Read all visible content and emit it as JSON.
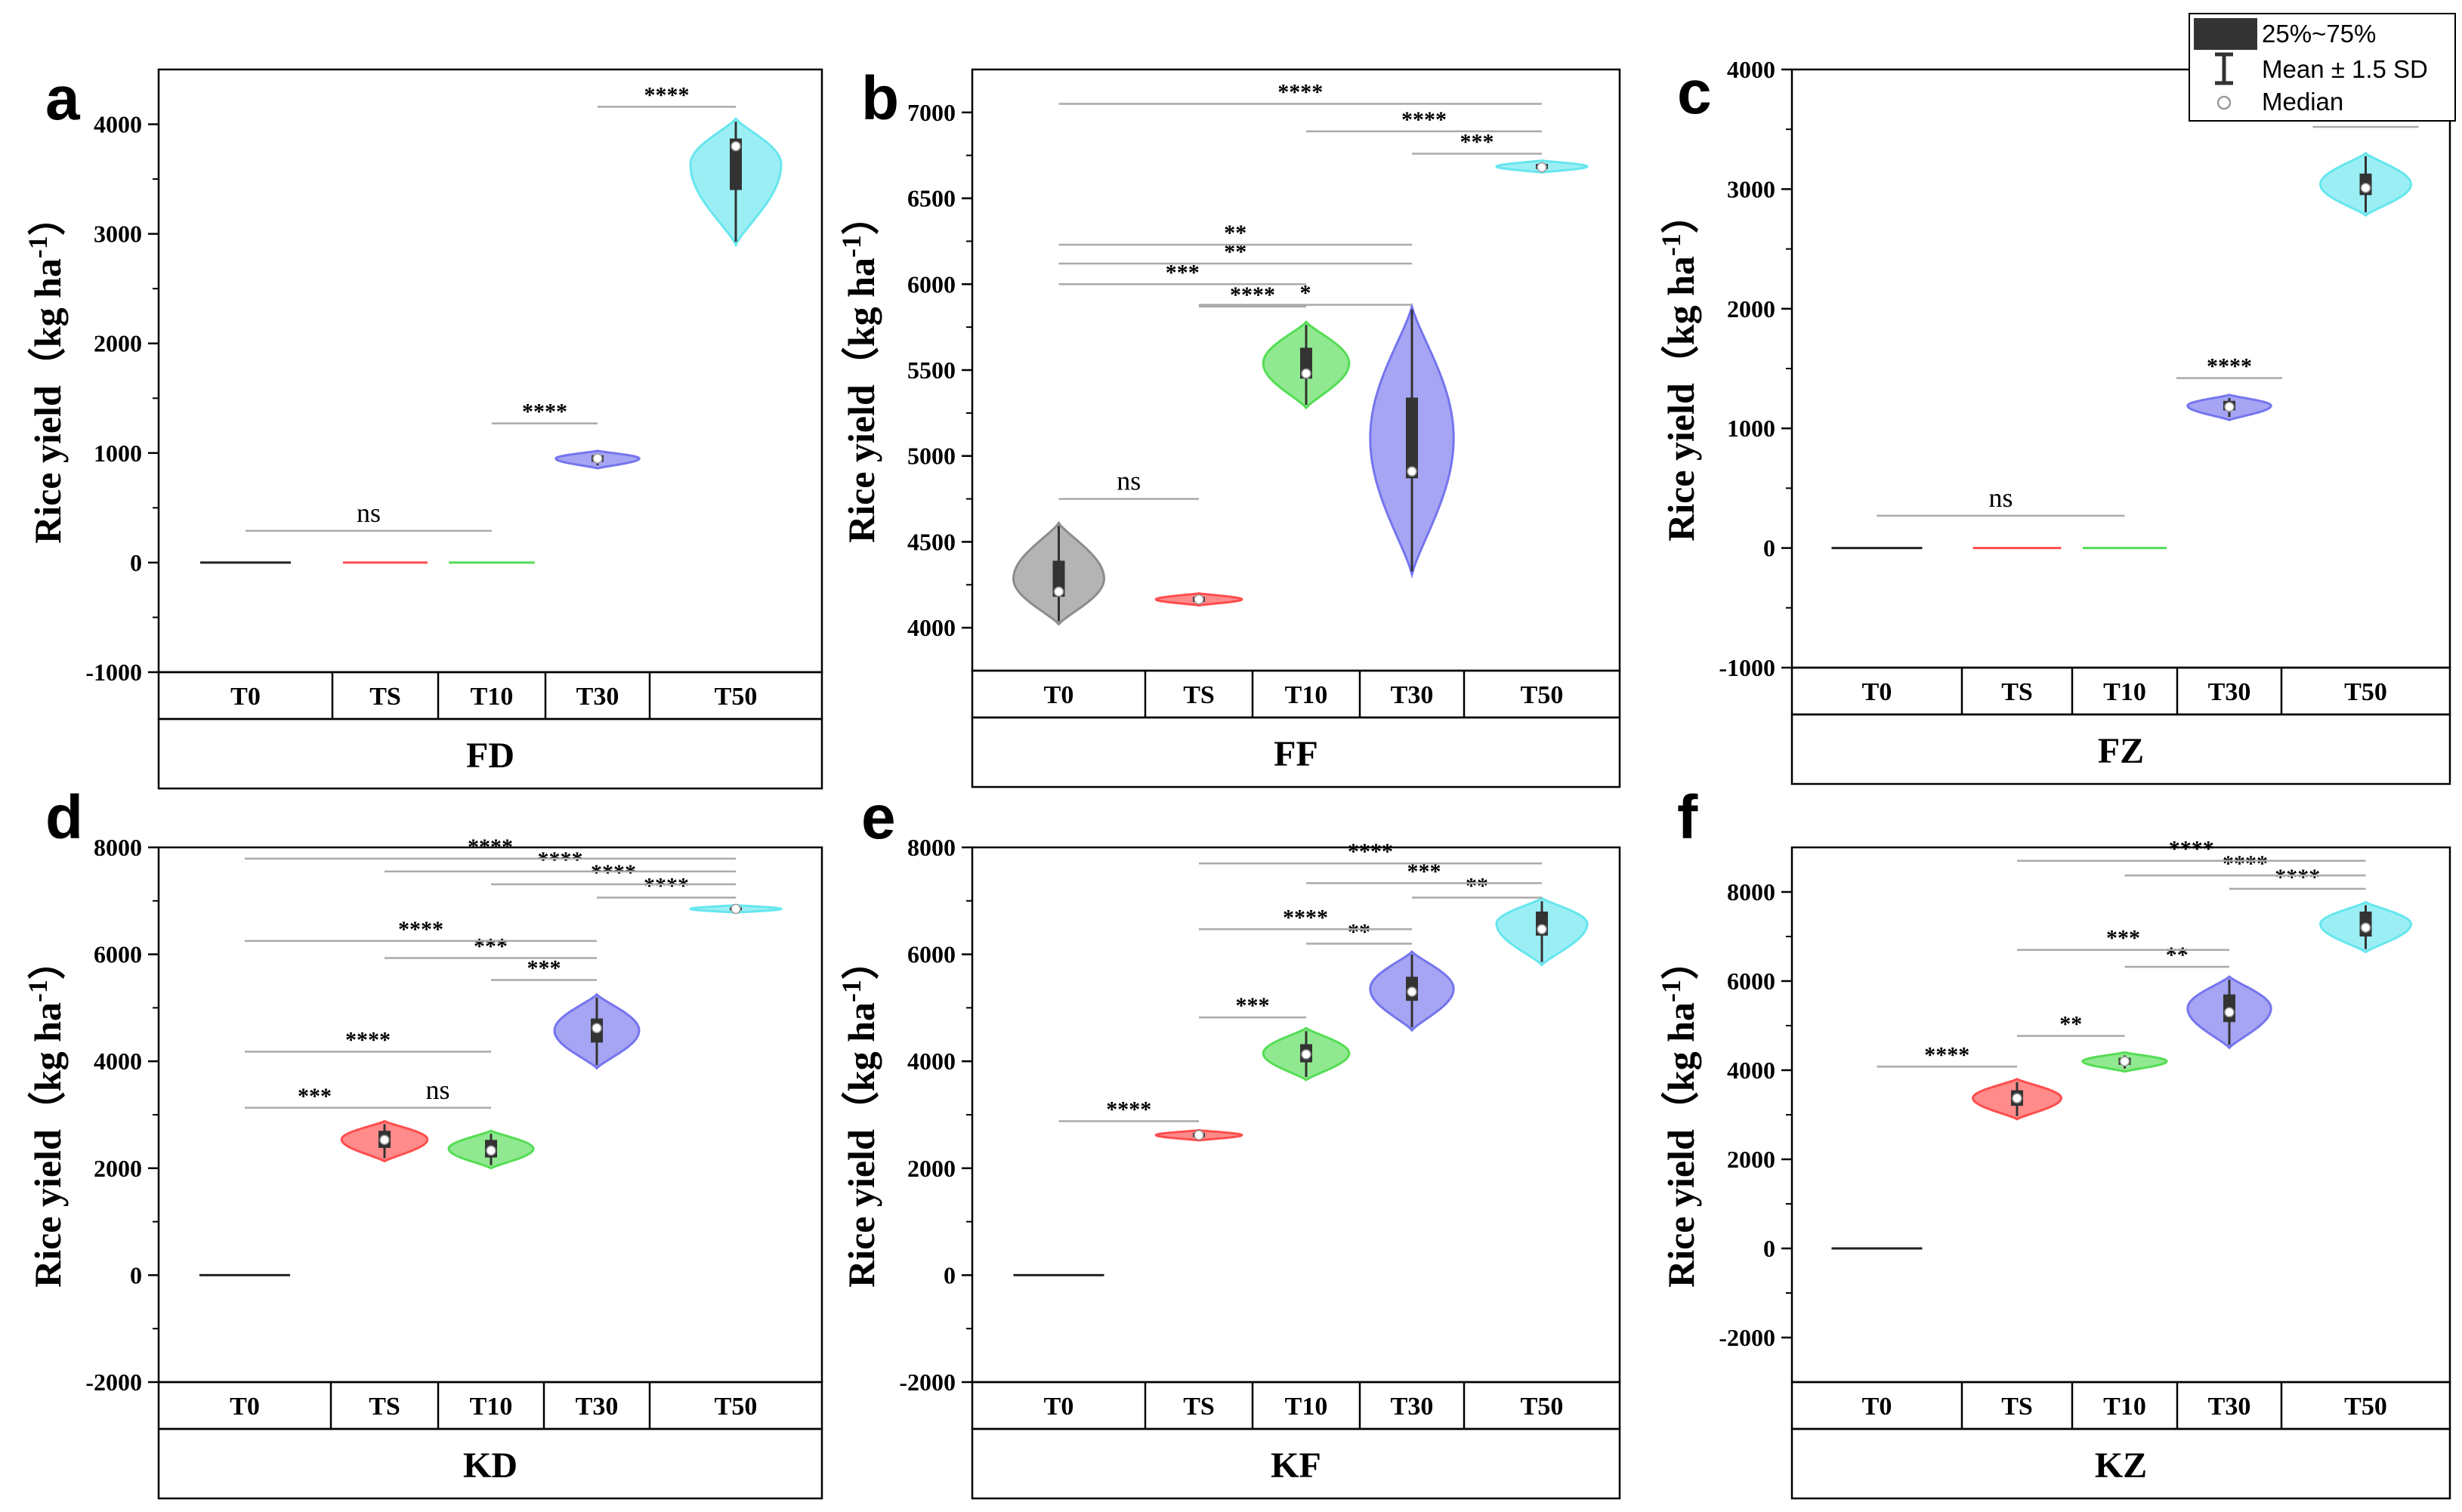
{
  "legend": {
    "items": [
      "25%~75%",
      "Mean ± 1.5 SD",
      "Median"
    ]
  },
  "chart_data": [
    {
      "type": "violin",
      "letter": "a",
      "site": "FD",
      "ylabel": "Rice yield（kg ha-1）",
      "ylim": [
        -1000,
        4500
      ],
      "yticks": [
        -1000,
        0,
        1000,
        2000,
        3000,
        4000
      ],
      "categories": [
        "T0",
        "TS",
        "T10",
        "T30",
        "T50"
      ],
      "colors": [
        "#8c8c8c",
        "#ff4d4d",
        "#55dd55",
        "#7575ee",
        "#66e6ee"
      ],
      "series": [
        {
          "name": "T0",
          "min": 0,
          "q1": 0,
          "median": 0,
          "q3": 0,
          "max": 0,
          "mean": 0
        },
        {
          "name": "TS",
          "min": 0,
          "q1": 0,
          "median": 0,
          "q3": 0,
          "max": 0,
          "mean": 0
        },
        {
          "name": "T10",
          "min": 0,
          "q1": 0,
          "median": 0,
          "q3": 0,
          "max": 0,
          "mean": 0
        },
        {
          "name": "T30",
          "min": 860,
          "q1": 920,
          "median": 950,
          "q3": 980,
          "max": 1020,
          "mean": 950
        },
        {
          "name": "T50",
          "min": 2900,
          "q1": 3400,
          "median": 3800,
          "q3": 3870,
          "max": 4050,
          "mean": 3650
        }
      ],
      "comparisons": [
        {
          "from": "T0",
          "to": "T10",
          "y": 290,
          "label": "ns"
        },
        {
          "from": "T10",
          "to": "T30",
          "y": 1270,
          "label": "****"
        },
        {
          "from": "T30",
          "to": "T50",
          "y": 4160,
          "label": "****"
        }
      ]
    },
    {
      "type": "violin",
      "letter": "b",
      "site": "FF",
      "ylabel": "Rice yield（kg ha-1）",
      "ylim": [
        3750,
        7250
      ],
      "yticks": [
        4000,
        4500,
        5000,
        5500,
        6000,
        6500,
        7000
      ],
      "categories": [
        "T0",
        "TS",
        "T10",
        "T30",
        "T50"
      ],
      "colors": [
        "#8c8c8c",
        "#ff4d4d",
        "#55dd55",
        "#7575ee",
        "#66e6ee"
      ],
      "series": [
        {
          "name": "T0",
          "min": 4020,
          "q1": 4180,
          "median": 4210,
          "q3": 4390,
          "max": 4610,
          "mean": 4270
        },
        {
          "name": "TS",
          "min": 4130,
          "q1": 4150,
          "median": 4165,
          "q3": 4180,
          "max": 4200,
          "mean": 4165
        },
        {
          "name": "T10",
          "min": 5280,
          "q1": 5450,
          "median": 5480,
          "q3": 5630,
          "max": 5780,
          "mean": 5520
        },
        {
          "name": "T30",
          "min": 4310,
          "q1": 4870,
          "median": 4910,
          "q3": 5340,
          "max": 5870,
          "mean": 5100
        },
        {
          "name": "T50",
          "min": 6650,
          "q1": 6670,
          "median": 6680,
          "q3": 6700,
          "max": 6720,
          "mean": 6680
        }
      ],
      "comparisons": [
        {
          "from": "T0",
          "to": "TS",
          "y": 4750,
          "label": "ns"
        },
        {
          "from": "TS",
          "to": "T30",
          "y": 5880,
          "label": "*"
        },
        {
          "from": "TS",
          "to": "T10",
          "y": 5870,
          "label": "****"
        },
        {
          "from": "T0",
          "to": "T10",
          "y": 6000,
          "label": "***"
        },
        {
          "from": "T0",
          "to": "T30",
          "y": 6120,
          "label": "**"
        },
        {
          "from": "T0",
          "to": "T30",
          "y": 6230,
          "label": "**"
        },
        {
          "from": "T30",
          "to": "T50",
          "y": 6760,
          "label": "***"
        },
        {
          "from": "T10",
          "to": "T50",
          "y": 6890,
          "label": "****"
        },
        {
          "from": "T0",
          "to": "T50",
          "y": 7050,
          "label": "****"
        }
      ]
    },
    {
      "type": "violin",
      "letter": "c",
      "site": "FZ",
      "ylabel": "Rice yield（kg ha-1）",
      "ylim": [
        -1000,
        4000
      ],
      "yticks": [
        -1000,
        0,
        1000,
        2000,
        3000,
        4000
      ],
      "categories": [
        "T0",
        "TS",
        "T10",
        "T30",
        "T50"
      ],
      "colors": [
        "#8c8c8c",
        "#ff4d4d",
        "#55dd55",
        "#7575ee",
        "#66e6ee"
      ],
      "series": [
        {
          "name": "T0",
          "min": 0,
          "q1": 0,
          "median": 0,
          "q3": 0,
          "max": 0,
          "mean": 0
        },
        {
          "name": "TS",
          "min": 0,
          "q1": 0,
          "median": 0,
          "q3": 0,
          "max": 0,
          "mean": 0
        },
        {
          "name": "T10",
          "min": 0,
          "q1": 0,
          "median": 0,
          "q3": 0,
          "max": 0,
          "mean": 0
        },
        {
          "name": "T30",
          "min": 1070,
          "q1": 1150,
          "median": 1180,
          "q3": 1230,
          "max": 1280,
          "mean": 1180
        },
        {
          "name": "T50",
          "min": 2780,
          "q1": 2950,
          "median": 3010,
          "q3": 3130,
          "max": 3300,
          "mean": 3020
        }
      ],
      "comparisons": [
        {
          "from": "T0",
          "to": "T10",
          "y": 270,
          "label": "ns"
        },
        {
          "from": "T30",
          "to": "T30",
          "y": 1420,
          "label": "****"
        },
        {
          "from": "T50",
          "to": "T50",
          "y": 3520,
          "label": "****"
        }
      ]
    },
    {
      "type": "violin",
      "letter": "d",
      "site": "KD",
      "ylabel": "Rice yield（kg ha-1）",
      "ylim": [
        -2000,
        8000
      ],
      "yticks": [
        -2000,
        0,
        2000,
        4000,
        6000,
        8000
      ],
      "categories": [
        "T0",
        "TS",
        "T10",
        "T30",
        "T50"
      ],
      "colors": [
        "#8c8c8c",
        "#ff4d4d",
        "#55dd55",
        "#7575ee",
        "#66e6ee"
      ],
      "series": [
        {
          "name": "T0",
          "min": 0,
          "q1": 0,
          "median": 0,
          "q3": 0,
          "max": 0,
          "mean": 0
        },
        {
          "name": "TS",
          "min": 2130,
          "q1": 2380,
          "median": 2530,
          "q3": 2700,
          "max": 2880,
          "mean": 2540
        },
        {
          "name": "T10",
          "min": 2000,
          "q1": 2200,
          "median": 2330,
          "q3": 2530,
          "max": 2700,
          "mean": 2350
        },
        {
          "name": "T30",
          "min": 3870,
          "q1": 4350,
          "median": 4620,
          "q3": 4800,
          "max": 5250,
          "mean": 4560
        },
        {
          "name": "T50",
          "min": 6780,
          "q1": 6820,
          "median": 6850,
          "q3": 6880,
          "max": 6920,
          "mean": 6850
        }
      ],
      "comparisons": [
        {
          "from": "T0",
          "to": "TS",
          "y": 3130,
          "label": "***"
        },
        {
          "from": "TS",
          "to": "T10",
          "y": 3130,
          "label": "ns"
        },
        {
          "from": "T0",
          "to": "T10",
          "y": 4180,
          "label": "****"
        },
        {
          "from": "T10",
          "to": "T30",
          "y": 5520,
          "label": "***"
        },
        {
          "from": "TS",
          "to": "T30",
          "y": 5930,
          "label": "***"
        },
        {
          "from": "T0",
          "to": "T30",
          "y": 6250,
          "label": "****"
        },
        {
          "from": "T30",
          "to": "T50",
          "y": 7060,
          "label": "****"
        },
        {
          "from": "T10",
          "to": "T50",
          "y": 7310,
          "label": "****"
        },
        {
          "from": "TS",
          "to": "T50",
          "y": 7550,
          "label": "****"
        },
        {
          "from": "T0",
          "to": "T50",
          "y": 7790,
          "label": "****"
        }
      ]
    },
    {
      "type": "violin",
      "letter": "e",
      "site": "KF",
      "ylabel": "Rice yield（kg ha-1）",
      "ylim": [
        -2000,
        8000
      ],
      "yticks": [
        -2000,
        0,
        2000,
        4000,
        6000,
        8000
      ],
      "categories": [
        "T0",
        "TS",
        "T10",
        "T30",
        "T50"
      ],
      "colors": [
        "#8c8c8c",
        "#ff4d4d",
        "#55dd55",
        "#7575ee",
        "#66e6ee"
      ],
      "series": [
        {
          "name": "T0",
          "min": 0,
          "q1": 0,
          "median": 0,
          "q3": 0,
          "max": 0,
          "mean": 0
        },
        {
          "name": "TS",
          "min": 2520,
          "q1": 2580,
          "median": 2620,
          "q3": 2660,
          "max": 2710,
          "mean": 2620
        },
        {
          "name": "T10",
          "min": 3650,
          "q1": 3980,
          "median": 4130,
          "q3": 4320,
          "max": 4620,
          "mean": 4130
        },
        {
          "name": "T30",
          "min": 4580,
          "q1": 5130,
          "median": 5300,
          "q3": 5580,
          "max": 6050,
          "mean": 5330
        },
        {
          "name": "T50",
          "min": 5800,
          "q1": 6350,
          "median": 6470,
          "q3": 6800,
          "max": 7050,
          "mean": 6470
        }
      ],
      "comparisons": [
        {
          "from": "T0",
          "to": "TS",
          "y": 2880,
          "label": "****"
        },
        {
          "from": "TS",
          "to": "T10",
          "y": 4820,
          "label": "***"
        },
        {
          "from": "T10",
          "to": "T30",
          "y": 6200,
          "label": "**"
        },
        {
          "from": "TS",
          "to": "T30",
          "y": 6470,
          "label": "****"
        },
        {
          "from": "T30",
          "to": "T50",
          "y": 7060,
          "label": "**"
        },
        {
          "from": "T10",
          "to": "T50",
          "y": 7330,
          "label": "***"
        },
        {
          "from": "TS",
          "to": "T50",
          "y": 7700,
          "label": "****"
        }
      ]
    },
    {
      "type": "violin",
      "letter": "f",
      "site": "KZ",
      "ylabel": "Rice yield（kg ha-1）",
      "ylim": [
        -3000,
        9000
      ],
      "yticks": [
        -2000,
        0,
        2000,
        4000,
        6000,
        8000
      ],
      "categories": [
        "T0",
        "TS",
        "T10",
        "T30",
        "T50"
      ],
      "colors": [
        "#8c8c8c",
        "#ff4d4d",
        "#55dd55",
        "#7575ee",
        "#66e6ee"
      ],
      "series": [
        {
          "name": "T0",
          "min": 0,
          "q1": 0,
          "median": 0,
          "q3": 0,
          "max": 0,
          "mean": 0
        },
        {
          "name": "TS",
          "min": 2900,
          "q1": 3200,
          "median": 3370,
          "q3": 3550,
          "max": 3800,
          "mean": 3380
        },
        {
          "name": "T10",
          "min": 3970,
          "q1": 4120,
          "median": 4200,
          "q3": 4280,
          "max": 4400,
          "mean": 4210
        },
        {
          "name": "T30",
          "min": 4500,
          "q1": 5080,
          "median": 5300,
          "q3": 5700,
          "max": 6100,
          "mean": 5330
        },
        {
          "name": "T50",
          "min": 6650,
          "q1": 7000,
          "median": 7200,
          "q3": 7560,
          "max": 7770,
          "mean": 7230
        }
      ],
      "comparisons": [
        {
          "from": "T0",
          "to": "TS",
          "y": 4080,
          "label": "****"
        },
        {
          "from": "TS",
          "to": "T10",
          "y": 4770,
          "label": "**"
        },
        {
          "from": "T10",
          "to": "T30",
          "y": 6320,
          "label": "**"
        },
        {
          "from": "TS",
          "to": "T30",
          "y": 6700,
          "label": "***"
        },
        {
          "from": "T30",
          "to": "T50",
          "y": 8070,
          "label": "****"
        },
        {
          "from": "T10",
          "to": "T50",
          "y": 8370,
          "label": "****"
        },
        {
          "from": "TS",
          "to": "T50",
          "y": 8700,
          "label": "****"
        }
      ]
    }
  ]
}
